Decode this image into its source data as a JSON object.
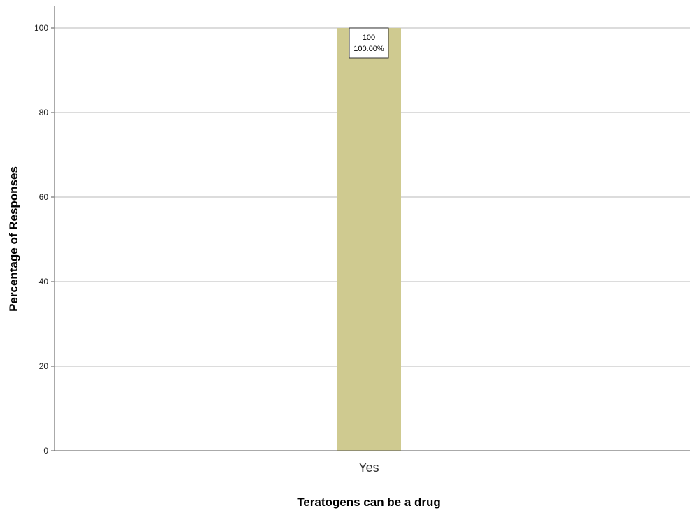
{
  "chart_data": {
    "type": "bar",
    "title": "",
    "xlabel": "Teratogens can be a drug",
    "ylabel": "Percentage of Responses",
    "categories": [
      "Yes"
    ],
    "values": [
      100
    ],
    "data_labels": [
      {
        "count": "100",
        "percent": "100.00%"
      }
    ],
    "ylim": [
      0,
      100
    ],
    "yticks": [
      0,
      20,
      40,
      60,
      80,
      100
    ],
    "grid": true,
    "legend": "none",
    "colors": {
      "bar": "#cfca90",
      "grid": "#c8c8c8",
      "axis": "#555555"
    }
  }
}
